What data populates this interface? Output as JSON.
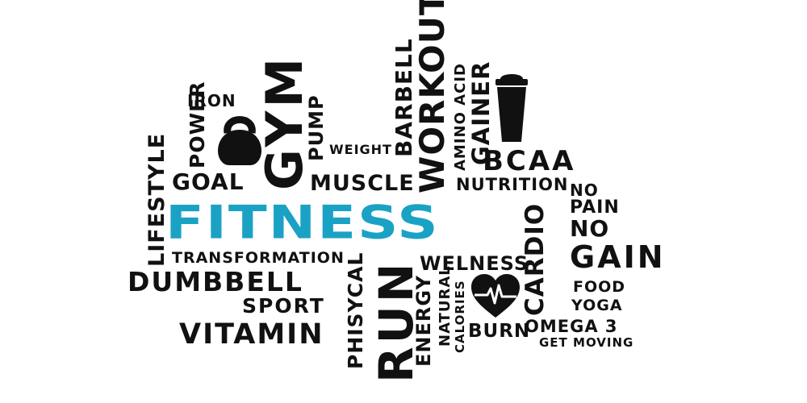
{
  "words": {
    "fitness": "FITNESS",
    "gym": "GYM",
    "iron": "IRON",
    "power": "POWER",
    "pump": "PUMP",
    "weight": "WEIGHT",
    "lifestyle": "LIFESTYLE",
    "goal": "GOAL",
    "muscle": "MUSCLE",
    "barbell": "BARBELL",
    "workout": "WORKOUT",
    "amino_acid": "AMINO ACID",
    "gainer": "GAINER",
    "bcaa": "BCAA",
    "nutrition": "NUTRITION",
    "no_1": "NO",
    "pain": "PAIN",
    "no_2": "NO",
    "gain": "GAIN",
    "transformation": "TRANSFORMATION",
    "dumbbell": "DUMBBELL",
    "sport": "SPORT",
    "vitamin": "VITAMIN",
    "physical": "PHISYCAL",
    "run": "RUN",
    "welness": "WELNESS",
    "energy": "ENERGY",
    "natural": "NATURAL",
    "calories": "CALORIES",
    "burn": "BURN",
    "cardio": "CARDIO",
    "food": "FOOD",
    "yoga": "YOGA",
    "omega": "OMEGA 3",
    "get_moving": "GET MOVING"
  },
  "icons": {
    "kettlebell": "kettlebell-icon",
    "shaker": "protein-shaker-icon",
    "heart": "heart-pulse-icon"
  },
  "colors": {
    "accent": "#1aa2c4",
    "ink": "#111111",
    "background": "#ffffff"
  }
}
